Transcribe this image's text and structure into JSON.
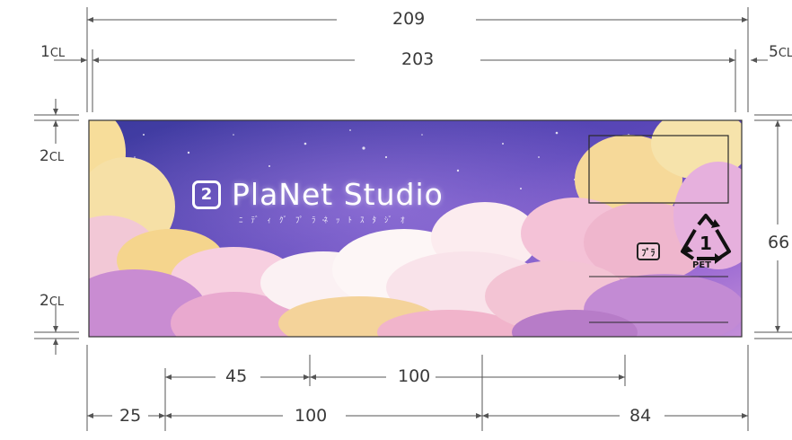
{
  "dimensions": {
    "overall_width": "209",
    "inner_width": "203",
    "height": "66",
    "left_margin": "1",
    "right_margin": "5",
    "top_margin": "2",
    "bottom_margin": "2",
    "margin_unit": "CL",
    "bottom_row1": [
      "45",
      "100"
    ],
    "bottom_row2": [
      "25",
      "100",
      "84"
    ]
  },
  "label": {
    "logo_badge": "2",
    "logo_text": "PlaNet Studio",
    "logo_subtitle": "ﾆﾃﾞｨｸﾞﾌﾟﾗﾈｯﾄｽﾀｼﾞｵ",
    "recycle_number": "1",
    "recycle_material": "PET",
    "small_mark": "ﾌﾟﾗ"
  },
  "colors": {
    "sky_top": "#4b3fa6",
    "sky_mid": "#7a4fc7",
    "cloud_yellow": "#f4d488",
    "cloud_pink": "#f2b8cf",
    "cloud_purple": "#c58ed6",
    "cloud_white": "#fbf3f5",
    "dimension_line": "#555555"
  }
}
